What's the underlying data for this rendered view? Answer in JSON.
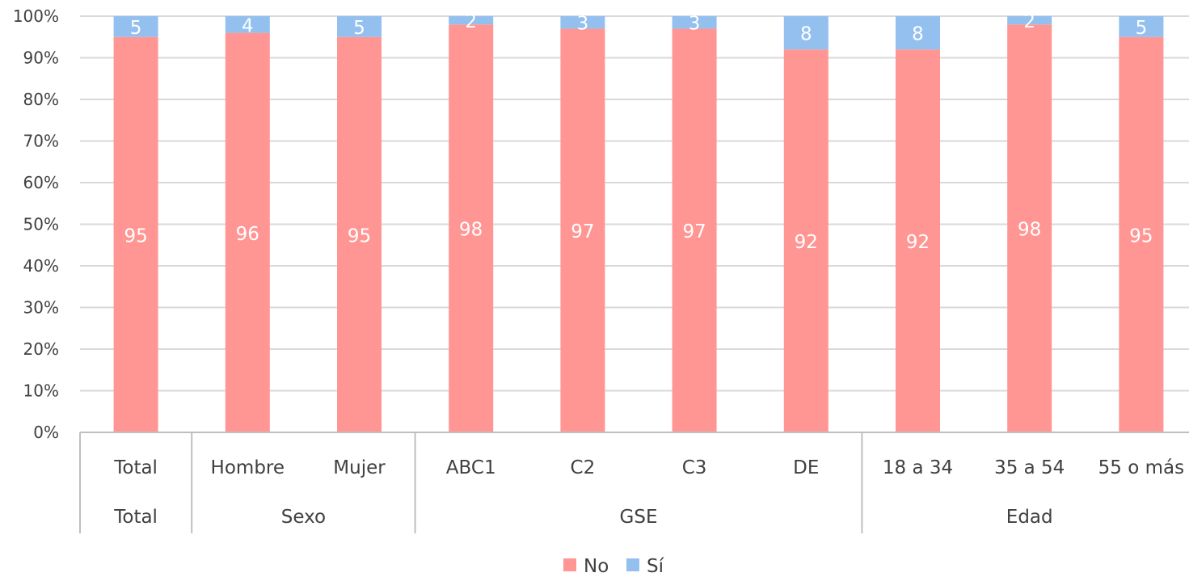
{
  "chart_data": {
    "type": "bar",
    "stacked": true,
    "percent_stacked": true,
    "title": "",
    "xlabel": "",
    "ylabel": "",
    "ylim": [
      0,
      100
    ],
    "y_ticks": [
      "0%",
      "10%",
      "20%",
      "30%",
      "40%",
      "50%",
      "60%",
      "70%",
      "80%",
      "90%",
      "100%"
    ],
    "grid": true,
    "legend_position": "bottom",
    "categories": [
      "Total",
      "Hombre",
      "Mujer",
      "ABC1",
      "C2",
      "C3",
      "DE",
      "18 a 34",
      "35 a 54",
      "55 o más"
    ],
    "groups": [
      {
        "label": "Total",
        "categories": [
          "Total"
        ]
      },
      {
        "label": "Sexo",
        "categories": [
          "Hombre",
          "Mujer"
        ]
      },
      {
        "label": "GSE",
        "categories": [
          "ABC1",
          "C2",
          "C3",
          "DE"
        ]
      },
      {
        "label": "Edad",
        "categories": [
          "18 a 34",
          "35 a 54",
          "55 o más"
        ]
      }
    ],
    "series": [
      {
        "name": "No",
        "color": "#ff9694",
        "values": [
          95,
          96,
          95,
          98,
          97,
          97,
          92,
          92,
          98,
          95
        ]
      },
      {
        "name": "Sí",
        "color": "#93c0ef",
        "values": [
          5,
          4,
          5,
          2,
          3,
          3,
          8,
          8,
          2,
          5
        ]
      }
    ],
    "colors": {
      "grid": "#d9d9d9",
      "axis": "#bfbfbf",
      "text": "#404040",
      "data_label": "#ffffff"
    }
  }
}
